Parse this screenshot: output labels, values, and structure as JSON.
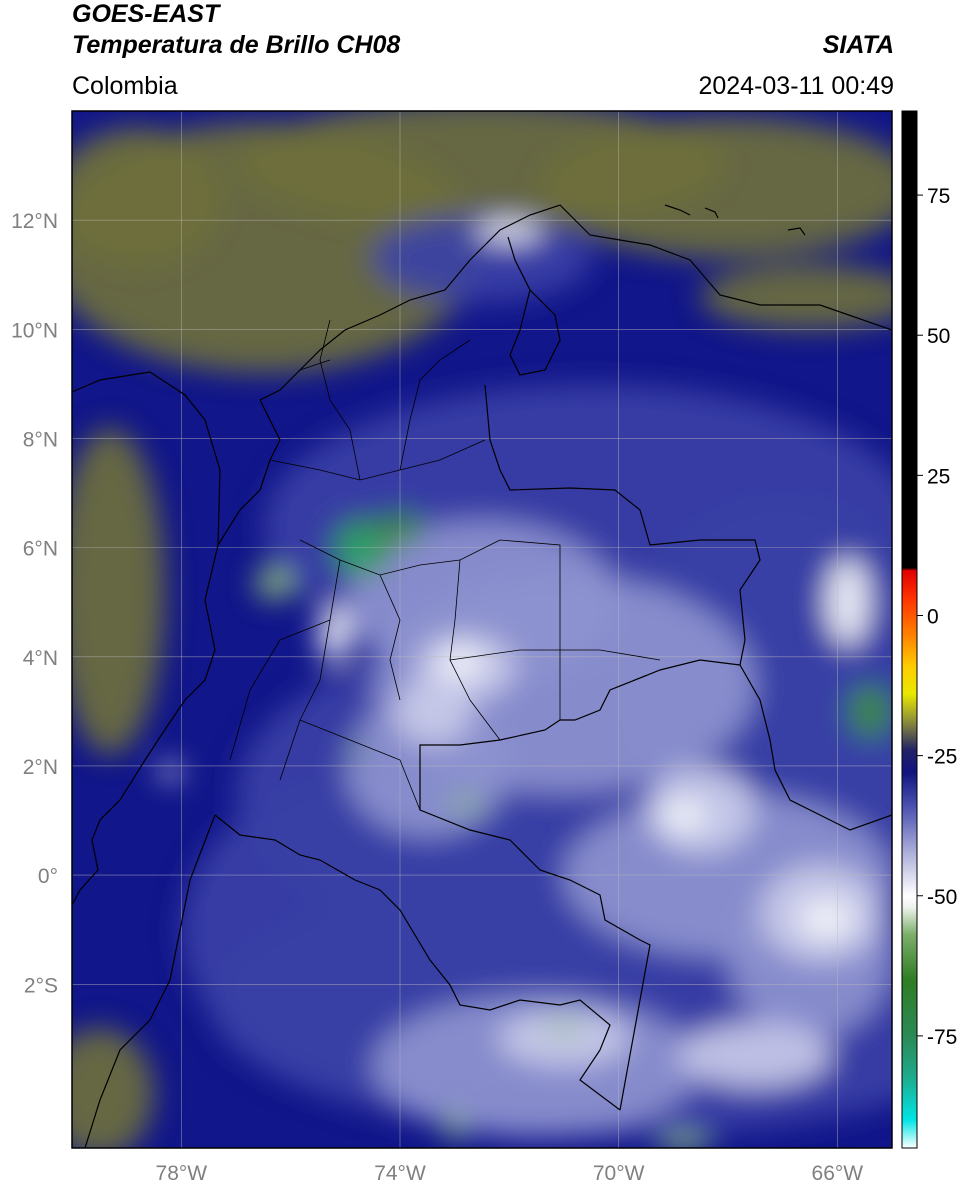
{
  "header": {
    "satellite": "GOES-EAST",
    "product": "Temperatura de Brillo CH08",
    "agency": "SIATA",
    "region": "Colombia",
    "datetime": "2024-03-11 00:49"
  },
  "map": {
    "lon_range": [
      -80,
      -65
    ],
    "lat_range": [
      -5,
      14
    ],
    "lat_ticks": [
      {
        "value": 12,
        "label": "12°N"
      },
      {
        "value": 10,
        "label": "10°N"
      },
      {
        "value": 8,
        "label": "8°N"
      },
      {
        "value": 6,
        "label": "6°N"
      },
      {
        "value": 4,
        "label": "4°N"
      },
      {
        "value": 2,
        "label": "2°N"
      },
      {
        "value": 0,
        "label": "0°"
      },
      {
        "value": -2,
        "label": "2°S"
      }
    ],
    "lon_ticks": [
      {
        "value": -78,
        "label": "78°W"
      },
      {
        "value": -74,
        "label": "74°W"
      },
      {
        "value": -70,
        "label": "70°W"
      },
      {
        "value": -66,
        "label": "66°W"
      }
    ],
    "grid": true
  },
  "colorbar": {
    "range": [
      -95,
      90
    ],
    "ticks": [
      {
        "value": 75,
        "label": "75"
      },
      {
        "value": 50,
        "label": "50"
      },
      {
        "value": 25,
        "label": "25"
      },
      {
        "value": 0,
        "label": "0"
      },
      {
        "value": -25,
        "label": "-25"
      },
      {
        "value": -50,
        "label": "-50"
      },
      {
        "value": -75,
        "label": "-75"
      }
    ],
    "stops": [
      {
        "v": -95,
        "c": "#ffffff"
      },
      {
        "v": -90,
        "c": "#00e5e5"
      },
      {
        "v": -82,
        "c": "#1fa88a"
      },
      {
        "v": -75,
        "c": "#2a8a56"
      },
      {
        "v": -65,
        "c": "#2f7d24"
      },
      {
        "v": -57,
        "c": "#7cae6a"
      },
      {
        "v": -52,
        "c": "#eef4ee"
      },
      {
        "v": -50,
        "c": "#ffffff"
      },
      {
        "v": -42,
        "c": "#a9acd8"
      },
      {
        "v": -34,
        "c": "#4a51b0"
      },
      {
        "v": -28,
        "c": "#10157e"
      },
      {
        "v": -24,
        "c": "#222266"
      },
      {
        "v": -19,
        "c": "#8a8b3a"
      },
      {
        "v": -14,
        "c": "#e8e800"
      },
      {
        "v": -9,
        "c": "#ffcc00"
      },
      {
        "v": -4,
        "c": "#ff8800"
      },
      {
        "v": 3,
        "c": "#ff3300"
      },
      {
        "v": 8,
        "c": "#e00000"
      },
      {
        "v": 8.5,
        "c": "#000000"
      },
      {
        "v": 90,
        "c": "#000000"
      }
    ]
  },
  "field": {
    "background": "#11168a",
    "colors": {
      "warm": "#6e6f3c",
      "deep": "#0e1388",
      "mid": "#3a41a6",
      "light": "#8d93cf",
      "pale": "#c9cbe9",
      "white": "#f4f5fb",
      "green_light": "#8fbe7a",
      "green": "#3c8d3a",
      "teal": "#2aa577"
    },
    "features": [
      {
        "cls": "warm",
        "lon": -76.5,
        "lat": 11.5,
        "rx": 4.0,
        "ry": 2.3
      },
      {
        "cls": "warm",
        "lon": -72.5,
        "lat": 13.0,
        "rx": 4.5,
        "ry": 1.2
      },
      {
        "cls": "warm",
        "lon": -78.8,
        "lat": 12.4,
        "rx": 1.6,
        "ry": 1.3
      },
      {
        "cls": "warm",
        "lon": -68.0,
        "lat": 12.6,
        "rx": 3.5,
        "ry": 1.3
      },
      {
        "cls": "warm",
        "lon": -79.3,
        "lat": 5.2,
        "rx": 1.0,
        "ry": 3.0
      },
      {
        "cls": "warm",
        "lon": -79.5,
        "lat": -4.0,
        "rx": 1.0,
        "ry": 1.2
      },
      {
        "cls": "warm",
        "lon": -66.5,
        "lat": 10.6,
        "rx": 2.0,
        "ry": 0.6
      },
      {
        "cls": "mid",
        "lon": -70.5,
        "lat": 6.4,
        "rx": 6.0,
        "ry": 2.6
      },
      {
        "cls": "mid",
        "lon": -70.0,
        "lat": 1.5,
        "rx": 7.0,
        "ry": 3.2
      },
      {
        "cls": "mid",
        "lon": -70.0,
        "lat": -2.3,
        "rx": 7.5,
        "ry": 2.5
      },
      {
        "cls": "mid",
        "lon": -74.0,
        "lat": -1.0,
        "rx": 4.0,
        "ry": 3.0
      },
      {
        "cls": "mid",
        "lon": -67.0,
        "lat": 3.5,
        "rx": 3.0,
        "ry": 3.5
      },
      {
        "cls": "mid",
        "lon": -72.5,
        "lat": 11.3,
        "rx": 2.0,
        "ry": 0.8
      },
      {
        "cls": "light",
        "lon": -71.0,
        "lat": 3.5,
        "rx": 3.5,
        "ry": 2.0
      },
      {
        "cls": "light",
        "lon": -72.5,
        "lat": 5.0,
        "rx": 2.5,
        "ry": 1.5
      },
      {
        "cls": "light",
        "lon": -68.0,
        "lat": 0.0,
        "rx": 3.0,
        "ry": 1.5
      },
      {
        "cls": "light",
        "lon": -71.5,
        "lat": -3.5,
        "rx": 3.0,
        "ry": 1.3
      },
      {
        "cls": "light",
        "lon": -66.5,
        "lat": -1.5,
        "rx": 1.5,
        "ry": 1.5
      },
      {
        "cls": "light",
        "lon": -73.5,
        "lat": 2.0,
        "rx": 1.5,
        "ry": 1.3
      },
      {
        "cls": "pale",
        "lon": -72.8,
        "lat": 3.8,
        "rx": 0.9,
        "ry": 0.6
      },
      {
        "cls": "pale",
        "lon": -68.5,
        "lat": 1.2,
        "rx": 1.0,
        "ry": 0.8
      },
      {
        "cls": "pale",
        "lon": -66.3,
        "lat": -0.7,
        "rx": 1.1,
        "ry": 0.9
      },
      {
        "cls": "pale",
        "lon": -71.0,
        "lat": -3.0,
        "rx": 1.2,
        "ry": 0.5
      },
      {
        "cls": "pale",
        "lon": -73.4,
        "lat": 3.0,
        "rx": 0.7,
        "ry": 0.6
      },
      {
        "cls": "pale",
        "lon": -67.5,
        "lat": -3.3,
        "rx": 1.4,
        "ry": 0.6
      },
      {
        "cls": "white",
        "lon": -72.9,
        "lat": 3.9,
        "rx": 0.4,
        "ry": 0.3
      },
      {
        "cls": "white",
        "lon": -68.8,
        "lat": 1.1,
        "rx": 0.4,
        "ry": 0.3
      },
      {
        "cls": "white",
        "lon": -66.2,
        "lat": -0.8,
        "rx": 0.5,
        "ry": 0.35
      },
      {
        "cls": "white",
        "lon": -72.0,
        "lat": 11.8,
        "rx": 0.6,
        "ry": 0.2
      },
      {
        "cls": "white",
        "lon": -78.2,
        "lat": 1.9,
        "rx": 0.2,
        "ry": 0.15
      },
      {
        "cls": "white",
        "lon": -75.2,
        "lat": 4.4,
        "rx": 0.3,
        "ry": 0.5
      },
      {
        "cls": "white",
        "lon": -65.8,
        "lat": 5.0,
        "rx": 0.4,
        "ry": 0.8
      },
      {
        "cls": "green",
        "lon": -74.7,
        "lat": 6.0,
        "rx": 0.55,
        "ry": 0.55
      },
      {
        "cls": "teal",
        "lon": -74.75,
        "lat": 5.95,
        "rx": 0.35,
        "ry": 0.4
      },
      {
        "cls": "green",
        "lon": -74.0,
        "lat": 6.35,
        "rx": 0.45,
        "ry": 0.3
      },
      {
        "cls": "green_light",
        "lon": -76.3,
        "lat": 5.35,
        "rx": 0.35,
        "ry": 0.3
      },
      {
        "cls": "green",
        "lon": -65.4,
        "lat": 3.0,
        "rx": 0.4,
        "ry": 0.5
      },
      {
        "cls": "green",
        "lon": -74.8,
        "lat": 2.3,
        "rx": 0.12,
        "ry": 0.15
      },
      {
        "cls": "green_light",
        "lon": -72.8,
        "lat": 1.3,
        "rx": 0.35,
        "ry": 0.12
      },
      {
        "cls": "green_light",
        "lon": -71.0,
        "lat": -2.8,
        "rx": 0.4,
        "ry": 0.1
      },
      {
        "cls": "green_light",
        "lon": -68.8,
        "lat": -4.9,
        "rx": 0.5,
        "ry": 0.15
      },
      {
        "cls": "green_light",
        "lon": -73.0,
        "lat": -4.6,
        "rx": 0.15,
        "ry": 0.3
      }
    ]
  }
}
